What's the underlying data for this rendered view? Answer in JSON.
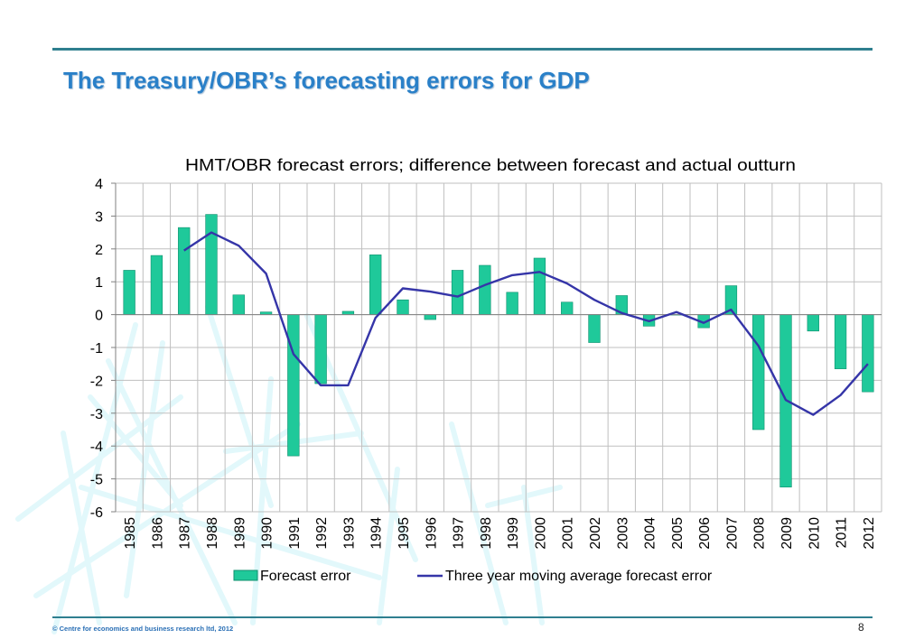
{
  "slide": {
    "title": "The Treasury/OBR’s forecasting errors for GDP",
    "footer": "© Centre for economics and business research ltd, 2012",
    "page_number": "8"
  },
  "colors": {
    "bar": "#1fc99a",
    "bar_stroke": "#0f8f6e",
    "line": "#3535a8",
    "grid": "#bfbfbf",
    "title_blue": "#2a80c8",
    "rule": "#2f7f8f"
  },
  "chart_data": {
    "type": "bar",
    "title": "HMT/OBR forecast errors; difference between forecast and actual outturn",
    "categories": [
      "1985",
      "1986",
      "1987",
      "1988",
      "1989",
      "1990",
      "1991",
      "1992",
      "1993",
      "1994",
      "1995",
      "1996",
      "1997",
      "1998",
      "1999",
      "2000",
      "2001",
      "2002",
      "2003",
      "2004",
      "2005",
      "2006",
      "2007",
      "2008",
      "2009",
      "2010",
      "2011",
      "2012"
    ],
    "ylim": [
      -6,
      4
    ],
    "yticks": [
      4,
      3,
      2,
      1,
      0,
      -1,
      -2,
      -3,
      -4,
      -5,
      -6
    ],
    "grid": true,
    "legend_position": "bottom",
    "series": [
      {
        "name": "Forecast error",
        "type": "bar",
        "values": [
          1.35,
          1.8,
          2.65,
          3.05,
          0.6,
          0.08,
          -4.3,
          -2.1,
          0.1,
          1.82,
          0.45,
          -0.15,
          1.35,
          1.5,
          0.68,
          1.72,
          0.38,
          -0.85,
          0.58,
          -0.35,
          0.0,
          -0.4,
          0.88,
          -3.5,
          -5.25,
          -0.5,
          -1.65,
          -2.35
        ]
      },
      {
        "name": "Three year moving average forecast error",
        "type": "line",
        "values": [
          null,
          null,
          1.95,
          2.5,
          2.1,
          1.25,
          -1.2,
          -2.15,
          -2.15,
          -0.1,
          0.8,
          0.7,
          0.55,
          0.9,
          1.2,
          1.3,
          0.95,
          0.45,
          0.05,
          -0.2,
          0.08,
          -0.25,
          0.15,
          -0.95,
          -2.6,
          -3.05,
          -2.45,
          -1.5
        ]
      }
    ]
  }
}
